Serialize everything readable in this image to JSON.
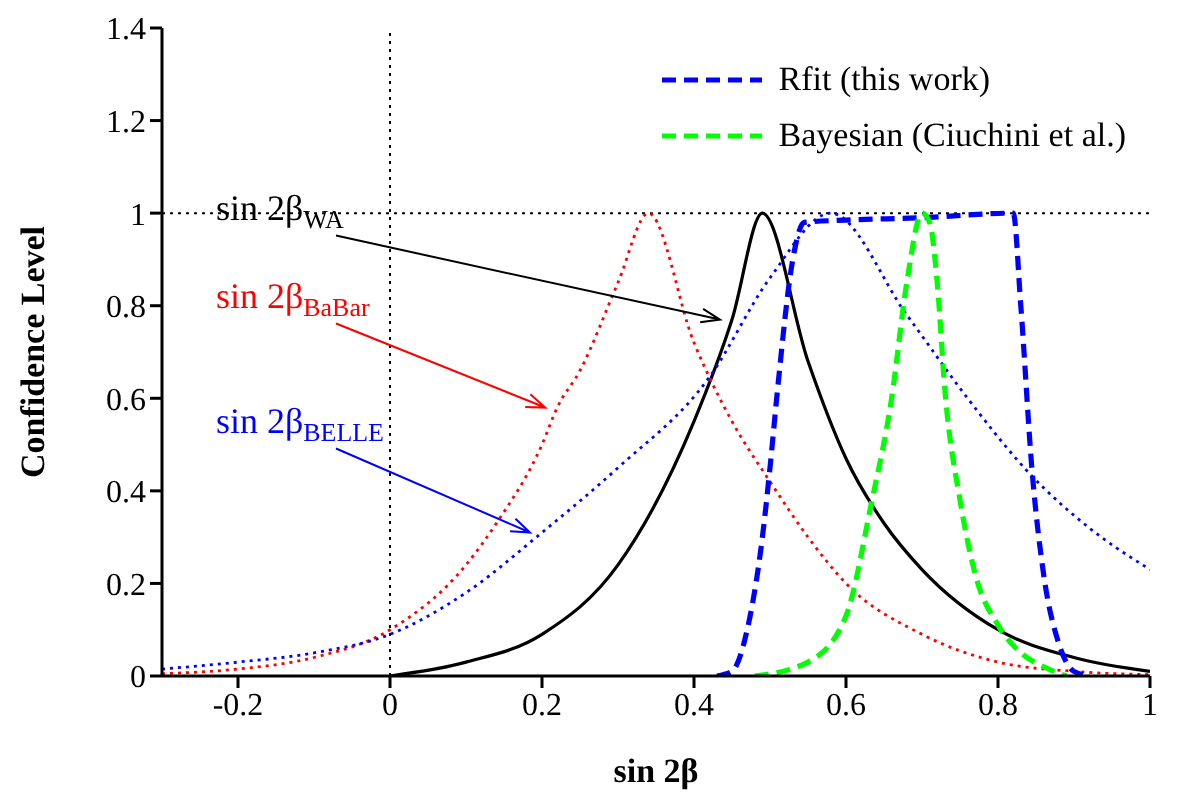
{
  "chart_data": {
    "type": "line",
    "xlabel": "sin 2β",
    "ylabel": "Confidence Level",
    "xlim": [
      -0.3,
      1
    ],
    "xticks": [
      -0.2,
      0,
      0.2,
      0.4,
      0.6,
      0.8,
      1
    ],
    "ylim": [
      0,
      1.4
    ],
    "yticks": [
      0,
      0.2,
      0.4,
      0.6,
      0.8,
      1,
      1.2,
      1.4
    ],
    "grid": false,
    "legend": "top right",
    "marker": "none",
    "ref_lines": [
      {
        "axis": "y",
        "value": 1,
        "line_style": "dotted",
        "color": "#000000"
      },
      {
        "axis": "x",
        "value": 0,
        "line_style": "dotted",
        "color": "#000000"
      }
    ],
    "annotations": [
      {
        "text": "sin 2β$_{WA}$",
        "x": 0.45,
        "y": 0.77
      },
      {
        "text": "sin 2β$_{BaBar}$",
        "x": 0.22,
        "y": 0.58
      },
      {
        "text": "sin 2β$_{BELLE}$",
        "x": 0.2,
        "y": 0.31
      }
    ],
    "series": [
      {
        "color": "#000000",
        "line_style": "solid",
        "x": [
          0,
          0.1,
          0.2,
          0.3,
          0.4,
          0.45,
          0.49,
          0.55,
          0.6,
          0.65,
          0.7,
          0.8,
          0.9,
          1
        ],
        "values": [
          0,
          0.03,
          0.09,
          0.24,
          0.55,
          0.77,
          1,
          0.68,
          0.47,
          0.33,
          0.23,
          0.1,
          0.04,
          0.01
        ]
      },
      {
        "color": "#ff0000",
        "line_style": "dotted",
        "x": [
          -0.3,
          -0.2,
          -0.1,
          0,
          0.1,
          0.14,
          0.2,
          0.22,
          0.25,
          0.3,
          0.34,
          0.4,
          0.45,
          0.5,
          0.55,
          0.6,
          0.7,
          0.8,
          0.9,
          1
        ],
        "values": [
          0.005,
          0.015,
          0.04,
          0.1,
          0.24,
          0.33,
          0.5,
          0.58,
          0.66,
          0.85,
          1,
          0.72,
          0.55,
          0.42,
          0.3,
          0.2,
          0.09,
          0.03,
          0.01,
          0.003
        ]
      },
      {
        "color": "#0000ff",
        "line_style": "dotted",
        "x": [
          -0.3,
          -0.2,
          -0.1,
          0,
          0.1,
          0.2,
          0.3,
          0.42,
          0.5,
          0.58,
          0.68,
          0.76,
          0.84,
          0.92,
          1
        ],
        "values": [
          0.015,
          0.03,
          0.05,
          0.09,
          0.18,
          0.31,
          0.45,
          0.645,
          0.86,
          1,
          0.78,
          0.6,
          0.44,
          0.32,
          0.23
        ]
      },
      {
        "name": "Rfit (this work)",
        "color": "#0000ff",
        "line_style": "dashed",
        "x": [
          0.43,
          0.45,
          0.47,
          0.49,
          0.5,
          0.51,
          0.53,
          0.545,
          0.6,
          0.7,
          0.82,
          0.83,
          0.845,
          0.86,
          0.88,
          0.9,
          0.92
        ],
        "values": [
          0,
          0.01,
          0.1,
          0.3,
          0.45,
          0.62,
          0.9,
          0.98,
          0.985,
          0.99,
          1,
          0.8,
          0.44,
          0.22,
          0.07,
          0.01,
          0
        ]
      },
      {
        "name": "Bayesian (Ciuchini et al.)",
        "color": "#00ff00",
        "line_style": "dashed",
        "x": [
          0.48,
          0.55,
          0.6,
          0.633,
          0.66,
          0.68,
          0.7,
          0.71,
          0.72,
          0.73,
          0.75,
          0.77,
          0.8,
          0.83,
          0.86,
          0.89
        ],
        "values": [
          0,
          0.03,
          0.13,
          0.37,
          0.6,
          0.85,
          1,
          0.98,
          0.85,
          0.62,
          0.38,
          0.22,
          0.11,
          0.05,
          0.02,
          0
        ]
      }
    ]
  }
}
